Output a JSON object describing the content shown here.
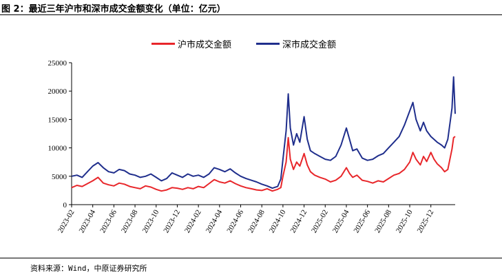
{
  "header": {
    "title": "图 2：最近三年沪市和深市成交金额变化（单位：亿元）"
  },
  "footer": {
    "source": "资料来源：Wind，中原证券研究所"
  },
  "chart_data": {
    "type": "line",
    "title": "",
    "xlabel": "",
    "ylabel": "",
    "ylim": [
      0,
      25000
    ],
    "yticks": [
      "0",
      "5000",
      "10000",
      "15000",
      "20000",
      "25000"
    ],
    "xlim": [
      0,
      36.3
    ],
    "xticks": [
      "2023-02",
      "2023-04",
      "2023-06",
      "2023-08",
      "2023-10",
      "2023-12",
      "2024-02",
      "2024-04",
      "2024-06",
      "2024-08",
      "2024-10",
      "2024-12",
      "2025-02",
      "2025-04",
      "2025-06",
      "2025-08",
      "2025-10",
      "2025-12"
    ],
    "series": [
      {
        "name": "沪市成交金额",
        "color": "#e8262a",
        "points": [
          [
            0.0,
            3000
          ],
          [
            0.5,
            3400
          ],
          [
            1.0,
            3200
          ],
          [
            1.5,
            3700
          ],
          [
            2.0,
            4200
          ],
          [
            2.5,
            4800
          ],
          [
            3.0,
            3800
          ],
          [
            3.5,
            3500
          ],
          [
            4.0,
            3300
          ],
          [
            4.5,
            3800
          ],
          [
            5.0,
            3600
          ],
          [
            5.5,
            3200
          ],
          [
            6.0,
            3000
          ],
          [
            6.5,
            2800
          ],
          [
            7.0,
            3300
          ],
          [
            7.5,
            3100
          ],
          [
            8.0,
            2700
          ],
          [
            8.5,
            2400
          ],
          [
            9.0,
            2600
          ],
          [
            9.5,
            3000
          ],
          [
            10.0,
            2900
          ],
          [
            10.5,
            2700
          ],
          [
            11.0,
            3000
          ],
          [
            11.5,
            2800
          ],
          [
            12.0,
            3200
          ],
          [
            12.5,
            3000
          ],
          [
            13.0,
            3700
          ],
          [
            13.5,
            4400
          ],
          [
            14.0,
            4000
          ],
          [
            14.5,
            3800
          ],
          [
            15.0,
            4200
          ],
          [
            15.5,
            3700
          ],
          [
            16.0,
            3300
          ],
          [
            16.5,
            3000
          ],
          [
            17.0,
            2800
          ],
          [
            17.5,
            2600
          ],
          [
            18.0,
            2500
          ],
          [
            18.5,
            2800
          ],
          [
            19.0,
            2400
          ],
          [
            19.5,
            2700
          ],
          [
            19.8,
            3000
          ],
          [
            20.0,
            5000
          ],
          [
            20.3,
            7500
          ],
          [
            20.5,
            11800
          ],
          [
            20.7,
            8000
          ],
          [
            21.0,
            6200
          ],
          [
            21.3,
            7500
          ],
          [
            21.6,
            6800
          ],
          [
            22.0,
            9000
          ],
          [
            22.3,
            7000
          ],
          [
            22.6,
            5800
          ],
          [
            23.0,
            5200
          ],
          [
            23.5,
            4800
          ],
          [
            24.0,
            4500
          ],
          [
            24.5,
            4000
          ],
          [
            25.0,
            4300
          ],
          [
            25.5,
            5000
          ],
          [
            26.0,
            6500
          ],
          [
            26.3,
            5500
          ],
          [
            26.6,
            4800
          ],
          [
            27.0,
            5200
          ],
          [
            27.5,
            4300
          ],
          [
            28.0,
            4100
          ],
          [
            28.5,
            3800
          ],
          [
            29.0,
            4200
          ],
          [
            29.5,
            4000
          ],
          [
            30.0,
            4600
          ],
          [
            30.5,
            5200
          ],
          [
            31.0,
            5500
          ],
          [
            31.5,
            6200
          ],
          [
            32.0,
            7500
          ],
          [
            32.3,
            9200
          ],
          [
            32.6,
            8000
          ],
          [
            33.0,
            7000
          ],
          [
            33.3,
            8500
          ],
          [
            33.6,
            7600
          ],
          [
            34.0,
            9200
          ],
          [
            34.3,
            8000
          ],
          [
            34.6,
            7200
          ],
          [
            35.0,
            6500
          ],
          [
            35.3,
            5800
          ],
          [
            35.6,
            6200
          ],
          [
            36.0,
            9800
          ],
          [
            36.15,
            11800
          ],
          [
            36.3,
            12000
          ]
        ]
      },
      {
        "name": "深市成交金额",
        "color": "#1f2e8c",
        "points": [
          [
            0.0,
            5000
          ],
          [
            0.5,
            5200
          ],
          [
            1.0,
            4800
          ],
          [
            1.5,
            5800
          ],
          [
            2.0,
            6800
          ],
          [
            2.5,
            7400
          ],
          [
            3.0,
            6500
          ],
          [
            3.5,
            5800
          ],
          [
            4.0,
            5600
          ],
          [
            4.5,
            6200
          ],
          [
            5.0,
            6000
          ],
          [
            5.5,
            5400
          ],
          [
            6.0,
            5200
          ],
          [
            6.5,
            4800
          ],
          [
            7.0,
            5000
          ],
          [
            7.5,
            5400
          ],
          [
            8.0,
            4800
          ],
          [
            8.5,
            4200
          ],
          [
            9.0,
            4600
          ],
          [
            9.5,
            5600
          ],
          [
            10.0,
            5200
          ],
          [
            10.5,
            4800
          ],
          [
            11.0,
            5400
          ],
          [
            11.5,
            5000
          ],
          [
            12.0,
            5200
          ],
          [
            12.5,
            4800
          ],
          [
            13.0,
            5400
          ],
          [
            13.5,
            6500
          ],
          [
            14.0,
            6200
          ],
          [
            14.5,
            5800
          ],
          [
            15.0,
            6300
          ],
          [
            15.5,
            5600
          ],
          [
            16.0,
            5000
          ],
          [
            16.5,
            4600
          ],
          [
            17.0,
            4300
          ],
          [
            17.5,
            4000
          ],
          [
            18.0,
            3600
          ],
          [
            18.5,
            3300
          ],
          [
            19.0,
            2900
          ],
          [
            19.5,
            3200
          ],
          [
            19.8,
            4500
          ],
          [
            20.0,
            8000
          ],
          [
            20.3,
            13000
          ],
          [
            20.5,
            19500
          ],
          [
            20.7,
            13500
          ],
          [
            21.0,
            10500
          ],
          [
            21.3,
            12500
          ],
          [
            21.6,
            11000
          ],
          [
            22.0,
            15500
          ],
          [
            22.3,
            11500
          ],
          [
            22.6,
            9500
          ],
          [
            23.0,
            9000
          ],
          [
            23.5,
            8500
          ],
          [
            24.0,
            8000
          ],
          [
            24.5,
            7800
          ],
          [
            25.0,
            8500
          ],
          [
            25.5,
            10500
          ],
          [
            26.0,
            13500
          ],
          [
            26.3,
            11500
          ],
          [
            26.6,
            9500
          ],
          [
            27.0,
            9800
          ],
          [
            27.5,
            8200
          ],
          [
            28.0,
            7800
          ],
          [
            28.5,
            8000
          ],
          [
            29.0,
            8600
          ],
          [
            29.5,
            9000
          ],
          [
            30.0,
            10000
          ],
          [
            30.5,
            11000
          ],
          [
            31.0,
            12000
          ],
          [
            31.5,
            14000
          ],
          [
            32.0,
            16500
          ],
          [
            32.3,
            18000
          ],
          [
            32.6,
            15000
          ],
          [
            33.0,
            13000
          ],
          [
            33.3,
            14500
          ],
          [
            33.6,
            13000
          ],
          [
            34.0,
            12000
          ],
          [
            34.3,
            11500
          ],
          [
            34.6,
            11000
          ],
          [
            35.0,
            10500
          ],
          [
            35.3,
            10000
          ],
          [
            35.6,
            11500
          ],
          [
            36.0,
            17000
          ],
          [
            36.15,
            22500
          ],
          [
            36.3,
            16000
          ]
        ]
      }
    ]
  }
}
